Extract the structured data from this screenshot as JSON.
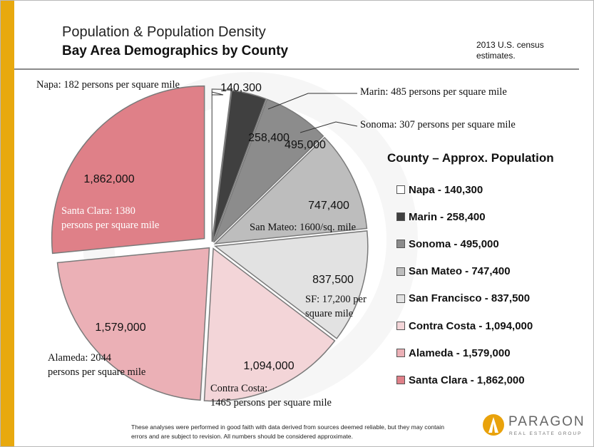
{
  "title": "Population & Population Density",
  "subtitle": "Bay Area Demographics by County",
  "note": "2013 U.S. census estimates.",
  "legend_title": "County – Approx. Population",
  "footnote": "These analyses were performed in good faith with data derived from sources  deemed reliable, but they may contain errors  and are subject to revision.  All numbers should be considered approximate.",
  "logo": {
    "name": "PARAGON",
    "tagline": "REAL ESTATE GROUP"
  },
  "colors": {
    "accent": "#e8a90e",
    "logo": "#e9a20b"
  },
  "chart_data": {
    "type": "pie",
    "title": "Population & Population Density",
    "subtitle": "Bay Area Demographics by County",
    "legend_title": "County – Approx. Population",
    "legend_position": "right",
    "slices": [
      {
        "name": "Napa",
        "value": 140300,
        "value_label": "140,300",
        "legend": "Napa - 140,300",
        "density": "Napa: 182 persons per square mile",
        "color": "#ffffff"
      },
      {
        "name": "Marin",
        "value": 258400,
        "value_label": "258,400",
        "legend": "Marin - 258,400",
        "density": "Marin: 485 persons per square mile",
        "color": "#404040"
      },
      {
        "name": "Sonoma",
        "value": 495000,
        "value_label": "495,000",
        "legend": "Sonoma - 495,000",
        "density": "Sonoma: 307 persons per square mile",
        "color": "#8c8c8c"
      },
      {
        "name": "San Mateo",
        "value": 747400,
        "value_label": "747,400",
        "legend": "San Mateo - 747,400",
        "density": "San Mateo: 1600/sq. mile",
        "color": "#bdbdbd"
      },
      {
        "name": "San Francisco",
        "value": 837500,
        "value_label": "837,500",
        "legend": "San Francisco - 837,500",
        "density": "SF: 17,200 per square mile",
        "color": "#e2e2e2"
      },
      {
        "name": "Contra Costa",
        "value": 1094000,
        "value_label": "1,094,000",
        "legend": "Contra Costa - 1,094,000",
        "density": "Contra Costa: 1465 persons per square mile",
        "color": "#f3d5d8"
      },
      {
        "name": "Alameda",
        "value": 1579000,
        "value_label": "1,579,000",
        "legend": "Alameda - 1,579,000",
        "density": "Alameda: 2044 persons per square mile",
        "color": "#ebb0b6"
      },
      {
        "name": "Santa Clara",
        "value": 1862000,
        "value_label": "1,862,000",
        "legend": "Santa Clara - 1,862,000",
        "density": "Santa Clara: 1380 persons per square mile",
        "color": "#df8088"
      }
    ]
  }
}
